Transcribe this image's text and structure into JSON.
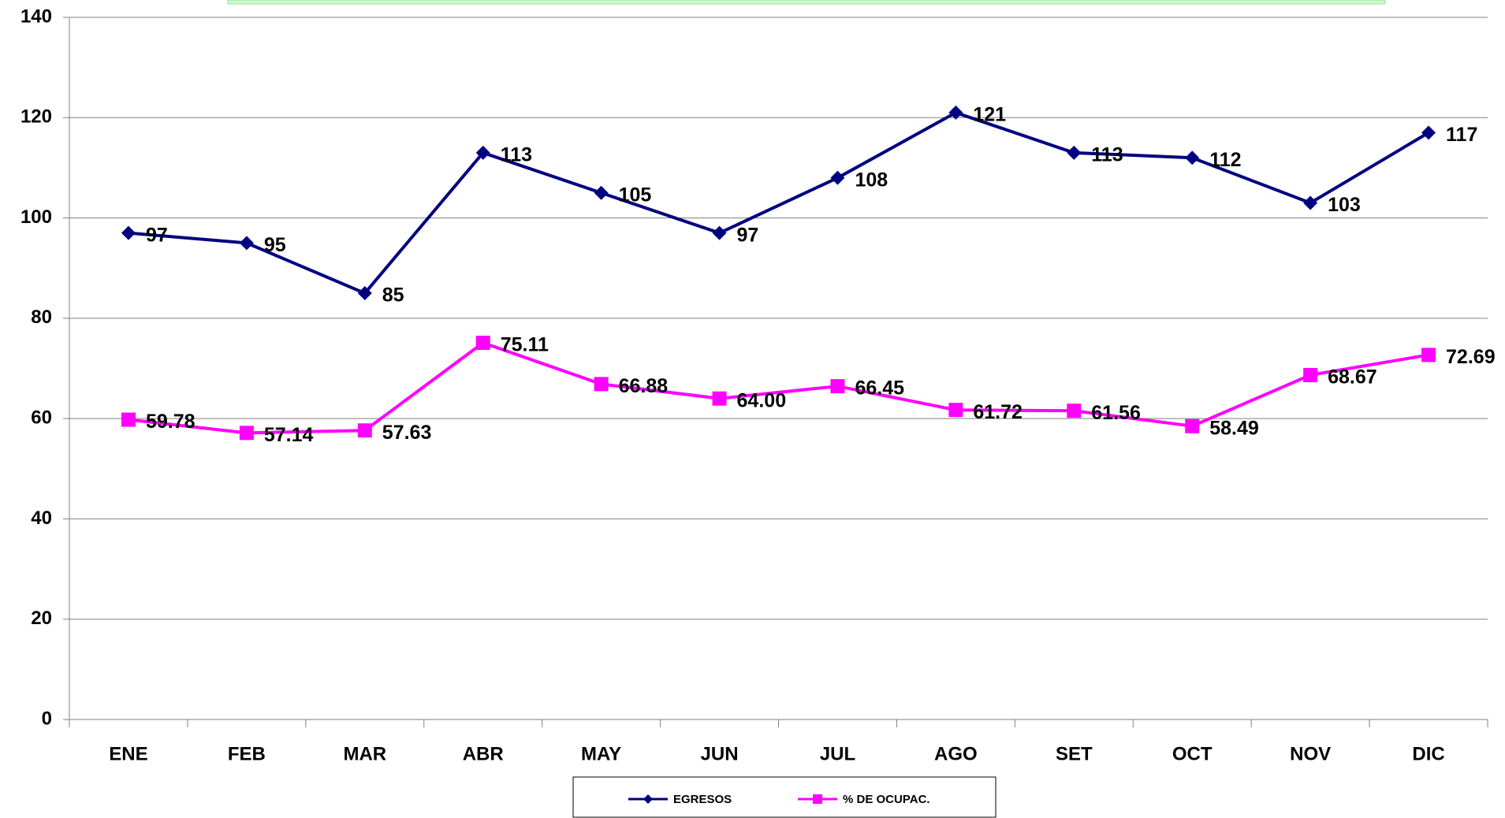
{
  "chart_data": {
    "type": "line",
    "categories": [
      "ENE",
      "FEB",
      "MAR",
      "ABR",
      "MAY",
      "JUN",
      "JUL",
      "AGO",
      "SET",
      "OCT",
      "NOV",
      "DIC"
    ],
    "series": [
      {
        "name": "EGRESOS",
        "color": "#000080",
        "marker": "diamond",
        "values": [
          97,
          95,
          85,
          113,
          105,
          97,
          108,
          121,
          113,
          112,
          103,
          117
        ]
      },
      {
        "name": "% DE OCUPAC.",
        "color": "#ff00ff",
        "marker": "square",
        "values": [
          59.78,
          57.14,
          57.63,
          75.11,
          66.88,
          64,
          66.45,
          61.72,
          61.56,
          58.49,
          68.67,
          72.69
        ],
        "value_labels": [
          "59.78",
          "57.14",
          "57.63",
          "75.11",
          "66.88",
          "64.00",
          "66.45",
          "61.72",
          "61.56",
          "58.49",
          "68.67",
          "72.69"
        ]
      }
    ],
    "ylim": [
      0,
      140
    ],
    "yticks": [
      0,
      20,
      40,
      60,
      80,
      100,
      120,
      140
    ],
    "grid": true,
    "legend": "bottom"
  }
}
